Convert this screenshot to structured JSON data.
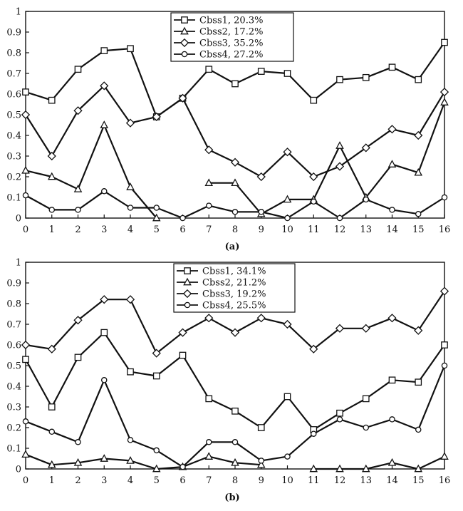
{
  "chart_data": [
    {
      "type": "line",
      "caption": "(a)",
      "x": [
        0,
        1,
        2,
        3,
        4,
        5,
        6,
        7,
        8,
        9,
        10,
        11,
        12,
        13,
        14,
        15,
        16
      ],
      "ylim": [
        0,
        1
      ],
      "y_ticks": [
        "0",
        "0.1",
        "0.2",
        "0.3",
        "0.4",
        "0.5",
        "0.6",
        "0.7",
        "0.8",
        "0.9",
        "1"
      ],
      "x_ticks": [
        "0",
        "1",
        "2",
        "3",
        "4",
        "5",
        "6",
        "7",
        "8",
        "9",
        "10",
        "11",
        "12",
        "13",
        "14",
        "15",
        "16"
      ],
      "legend_position": "top-center",
      "series": [
        {
          "name": "Cbss1, 20.3%",
          "marker": "square",
          "values": [
            0.61,
            0.57,
            0.72,
            0.81,
            0.82,
            0.49,
            0.58,
            0.72,
            0.65,
            0.71,
            0.7,
            0.57,
            0.67,
            0.68,
            0.73,
            0.67,
            0.85
          ]
        },
        {
          "name": "Cbss2, 17.2%",
          "marker": "triangle",
          "values": [
            0.23,
            0.2,
            0.14,
            0.45,
            0.15,
            0.0,
            null,
            0.17,
            0.17,
            0.02,
            0.09,
            0.09,
            0.35,
            0.1,
            0.26,
            0.22,
            0.56
          ]
        },
        {
          "name": "Cbss3, 35.2%",
          "marker": "diamond",
          "values": [
            0.5,
            0.3,
            0.52,
            0.64,
            0.46,
            0.49,
            0.58,
            0.33,
            0.27,
            0.2,
            0.32,
            0.2,
            0.25,
            0.34,
            0.43,
            0.4,
            0.61
          ]
        },
        {
          "name": "Cbss4, 27.2%",
          "marker": "circle",
          "values": [
            0.11,
            0.04,
            0.04,
            0.13,
            0.05,
            0.05,
            0.0,
            0.06,
            0.03,
            0.03,
            0.0,
            0.08,
            0.0,
            0.09,
            0.04,
            0.02,
            0.1
          ]
        }
      ]
    },
    {
      "type": "line",
      "caption": "(b)",
      "x": [
        0,
        1,
        2,
        3,
        4,
        5,
        6,
        7,
        8,
        9,
        10,
        11,
        12,
        13,
        14,
        15,
        16
      ],
      "ylim": [
        0,
        1
      ],
      "y_ticks": [
        "0",
        "0.1",
        "0.2",
        "0.3",
        "0.4",
        "0.5",
        "0.6",
        "0.7",
        "0.8",
        "0.9",
        "1"
      ],
      "x_ticks": [
        "0",
        "1",
        "2",
        "3",
        "4",
        "5",
        "6",
        "7",
        "8",
        "9",
        "10",
        "11",
        "12",
        "13",
        "14",
        "15",
        "16"
      ],
      "legend_position": "top-center",
      "series": [
        {
          "name": "Cbss1, 34.1%",
          "marker": "square",
          "values": [
            0.53,
            0.3,
            0.54,
            0.66,
            0.47,
            0.45,
            0.55,
            0.34,
            0.28,
            0.2,
            0.35,
            0.19,
            0.27,
            0.34,
            0.43,
            0.42,
            0.6
          ]
        },
        {
          "name": "Cbss2, 21.2%",
          "marker": "triangle",
          "values": [
            0.07,
            0.02,
            0.03,
            0.05,
            0.04,
            0.0,
            0.01,
            0.06,
            0.03,
            0.02,
            null,
            0.0,
            0.0,
            0.0,
            0.03,
            0.0,
            0.06
          ]
        },
        {
          "name": "Cbss3, 19.2%",
          "marker": "diamond",
          "values": [
            0.6,
            0.58,
            0.72,
            0.82,
            0.82,
            0.56,
            0.66,
            0.73,
            0.66,
            0.73,
            0.7,
            0.58,
            0.68,
            0.68,
            0.73,
            0.67,
            0.86
          ]
        },
        {
          "name": "Cbss4, 25.5%",
          "marker": "circle",
          "values": [
            0.23,
            0.18,
            0.13,
            0.43,
            0.14,
            0.09,
            0.01,
            0.13,
            0.13,
            0.04,
            0.06,
            0.17,
            0.24,
            0.2,
            0.24,
            0.19,
            0.5
          ]
        }
      ]
    }
  ]
}
